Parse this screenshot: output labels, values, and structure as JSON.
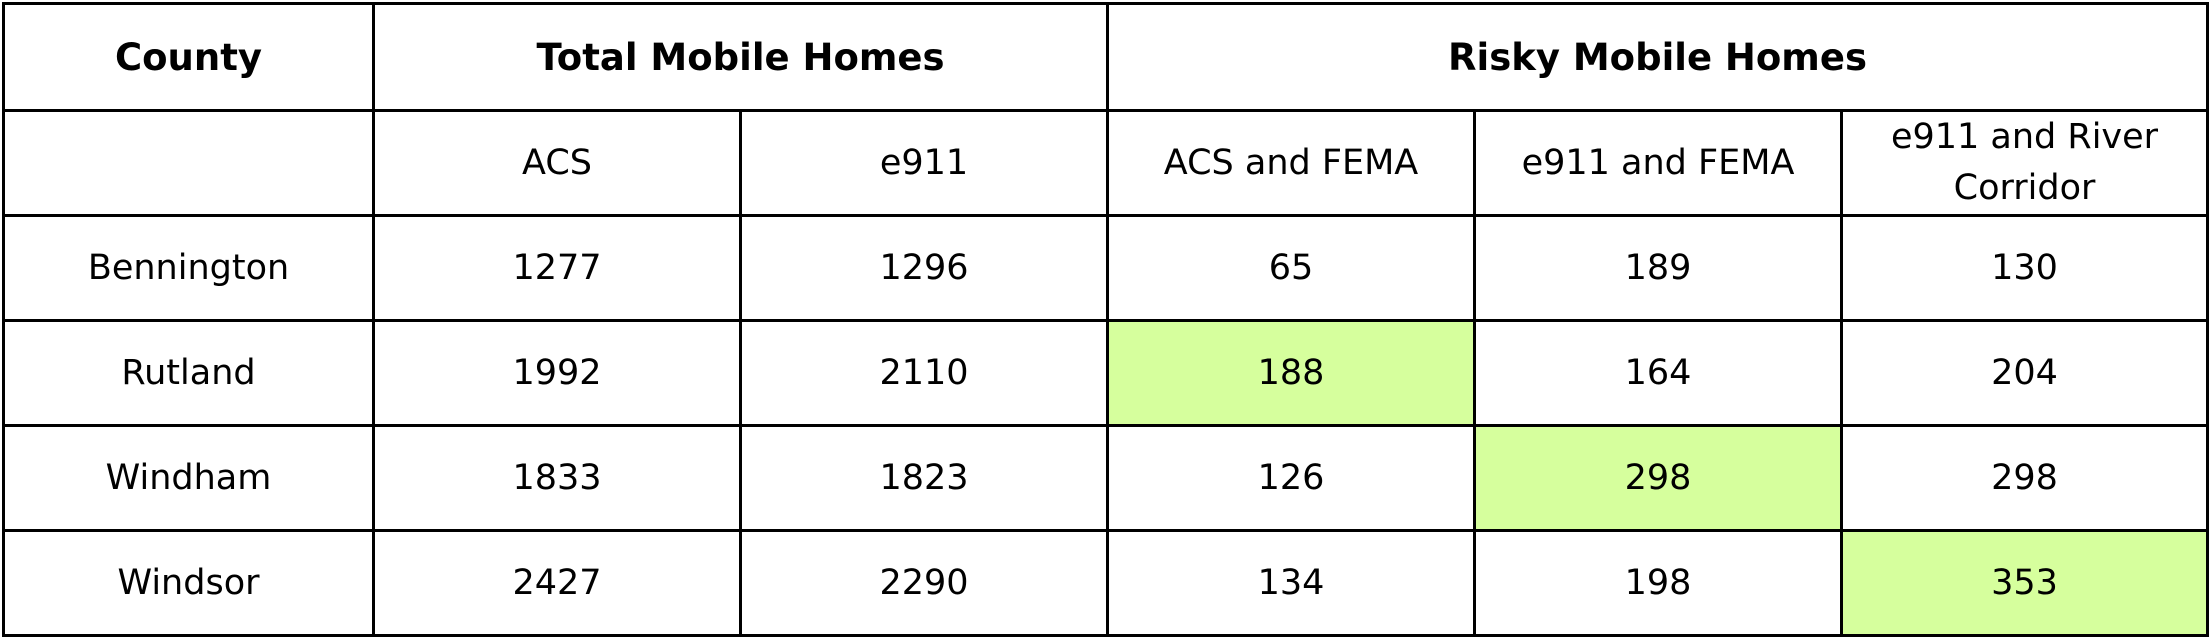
{
  "table": {
    "header": {
      "county": "County",
      "total": "Total Mobile Homes",
      "risky": "Risky Mobile Homes"
    },
    "subheader": {
      "county": "",
      "acs": "ACS",
      "e911": "e911",
      "acs_fema": "ACS and FEMA",
      "e911_fema": "e911 and FEMA",
      "e911_river": "e911 and River Corridor"
    },
    "highlight_color": "#d6ff9d",
    "rows": [
      {
        "county": "Bennington",
        "acs": "1277",
        "e911": "1296",
        "acs_fema": "65",
        "e911_fema": "189",
        "e911_river": "130"
      },
      {
        "county": "Rutland",
        "acs": "1992",
        "e911": "2110",
        "acs_fema": "188",
        "e911_fema": "164",
        "e911_river": "204"
      },
      {
        "county": "Windham",
        "acs": "1833",
        "e911": "1823",
        "acs_fema": "126",
        "e911_fema": "298",
        "e911_river": "298"
      },
      {
        "county": "Windsor",
        "acs": "2427",
        "e911": "2290",
        "acs_fema": "134",
        "e911_fema": "198",
        "e911_river": "353"
      }
    ]
  }
}
